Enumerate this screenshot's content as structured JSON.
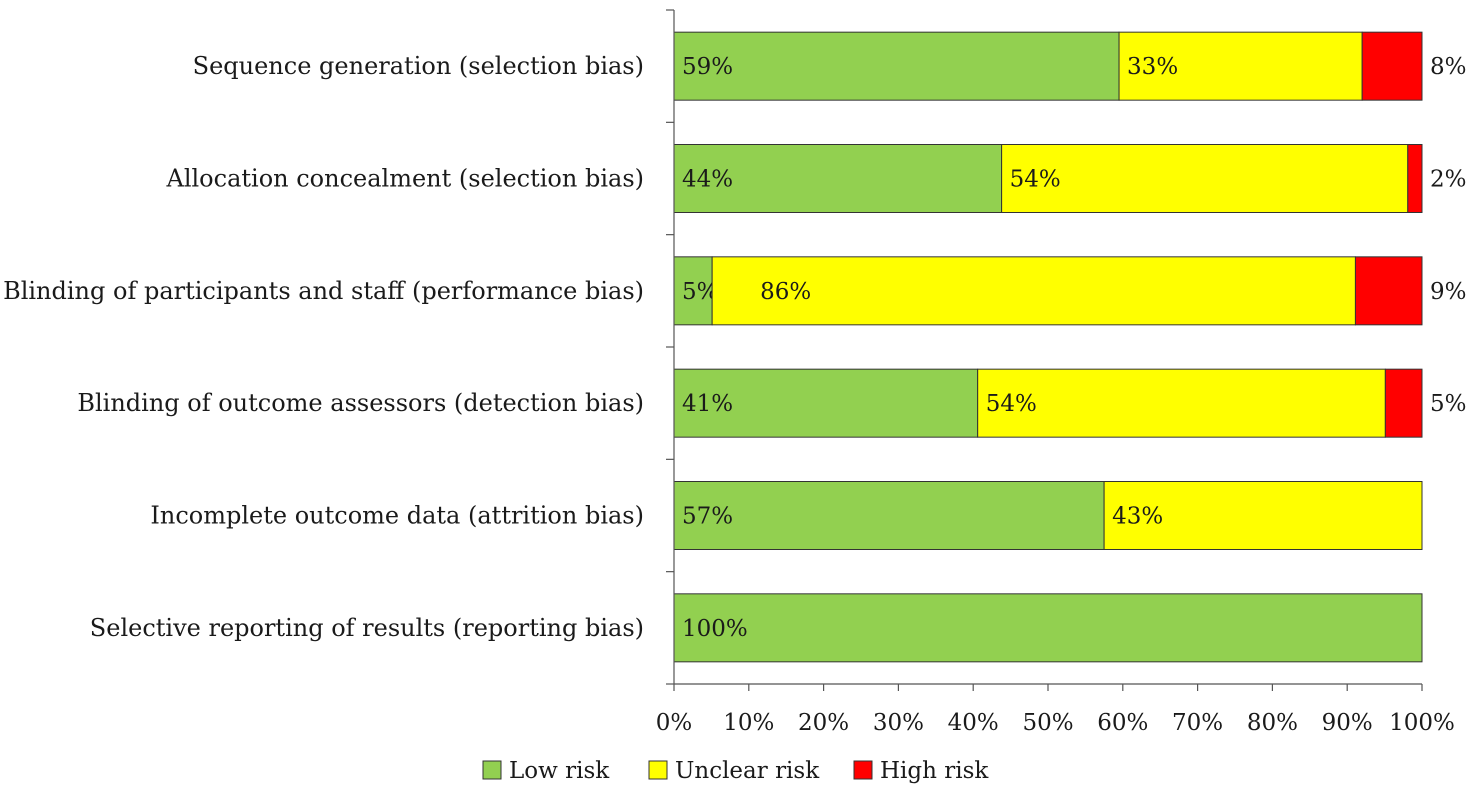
{
  "chart_data": {
    "type": "bar",
    "orientation": "horizontal",
    "stacked": true,
    "categories": [
      "Sequence generation (selection bias)",
      "Allocation concealment (selection bias)",
      "Blinding of participants and staff (performance bias)",
      "Blinding of outcome assessors (detection bias)",
      "Incomplete outcome data (attrition bias)",
      "Selective reporting of results (reporting bias)"
    ],
    "series": [
      {
        "name": "Low risk",
        "color": "#92d050",
        "values": [
          59.5,
          43.8,
          5.1,
          40.6,
          57.5,
          100
        ],
        "labels": [
          "59%",
          "44%",
          "5%",
          "41%",
          "57%",
          "100%"
        ]
      },
      {
        "name": "Unclear risk",
        "color": "#ffff00",
        "values": [
          32.5,
          54.3,
          86.0,
          54.5,
          42.5,
          0
        ],
        "labels": [
          "33%",
          "54%",
          "86%",
          "54%",
          "43%",
          ""
        ]
      },
      {
        "name": "High risk",
        "color": "#ff0000",
        "values": [
          8.0,
          1.9,
          8.9,
          4.9,
          0,
          0
        ],
        "labels": [
          "8%",
          "2%",
          "9%",
          "5%",
          "",
          ""
        ]
      }
    ],
    "xticks": [
      "0%",
      "10%",
      "20%",
      "30%",
      "40%",
      "50%",
      "60%",
      "70%",
      "80%",
      "90%",
      "100%"
    ],
    "xlim": [
      0,
      100
    ],
    "title": "",
    "xlabel": "",
    "ylabel": "",
    "grid": false,
    "legend_position": "bottom-center"
  }
}
